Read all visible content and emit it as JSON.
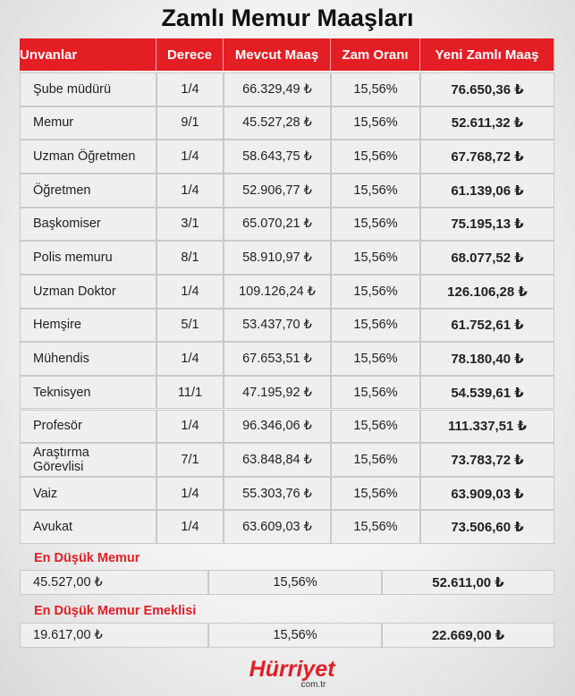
{
  "title": "Zamlı Memur Maaşları",
  "table": {
    "columns": [
      "Unvanlar",
      "Derece",
      "Mevcut Maaş",
      "Zam Oranı",
      "Yeni Zamlı Maaş"
    ],
    "rows": [
      [
        "Şube müdürü",
        "1/4",
        "66.329,49 ₺",
        "15,56%",
        "76.650,36 ₺"
      ],
      [
        "Memur",
        "9/1",
        "45.527,28 ₺",
        "15,56%",
        "52.611,32 ₺"
      ],
      [
        "Uzman Öğretmen",
        "1/4",
        "58.643,75 ₺",
        "15,56%",
        "67.768,72 ₺"
      ],
      [
        "Öğretmen",
        "1/4",
        "52.906,77 ₺",
        "15,56%",
        "61.139,06 ₺"
      ],
      [
        "Başkomiser",
        "3/1",
        "65.070,21 ₺",
        "15,56%",
        "75.195,13 ₺"
      ],
      [
        "Polis memuru",
        "8/1",
        "58.910,97 ₺",
        "15,56%",
        "68.077,52 ₺"
      ],
      [
        "Uzman Doktor",
        "1/4",
        "109.126,24 ₺",
        "15,56%",
        "126.106,28 ₺"
      ],
      [
        "Hemşire",
        "5/1",
        "53.437,70 ₺",
        "15,56%",
        "61.752,61 ₺"
      ],
      [
        "Mühendis",
        "1/4",
        "67.653,51 ₺",
        "15,56%",
        "78.180,40 ₺"
      ],
      [
        "Teknisyen",
        "11/1",
        "47.195,92 ₺",
        "15,56%",
        "54.539,61 ₺"
      ],
      [
        "Profesör",
        "1/4",
        "96.346,06 ₺",
        "15,56%",
        "111.337,51 ₺"
      ],
      [
        "Araştırma Görevlisi",
        "7/1",
        "63.848,84 ₺",
        "15,56%",
        "73.783,72 ₺"
      ],
      [
        "Vaiz",
        "1/4",
        "55.303,76 ₺",
        "15,56%",
        "63.909,03 ₺"
      ],
      [
        "Avukat",
        "1/4",
        "63.609,03 ₺",
        "15,56%",
        "73.506,60 ₺"
      ]
    ]
  },
  "summaries": [
    {
      "label": "En Düşük Memur",
      "cells": [
        "45.527,00 ₺",
        "15,56%",
        "52.611,00 ₺"
      ]
    },
    {
      "label": "En Düşük Memur Emeklisi",
      "cells": [
        "19.617,00 ₺",
        "15,56%",
        "22.669,00 ₺"
      ]
    }
  ],
  "logo": {
    "name": "Hürriyet",
    "domain": "com.tr"
  }
}
